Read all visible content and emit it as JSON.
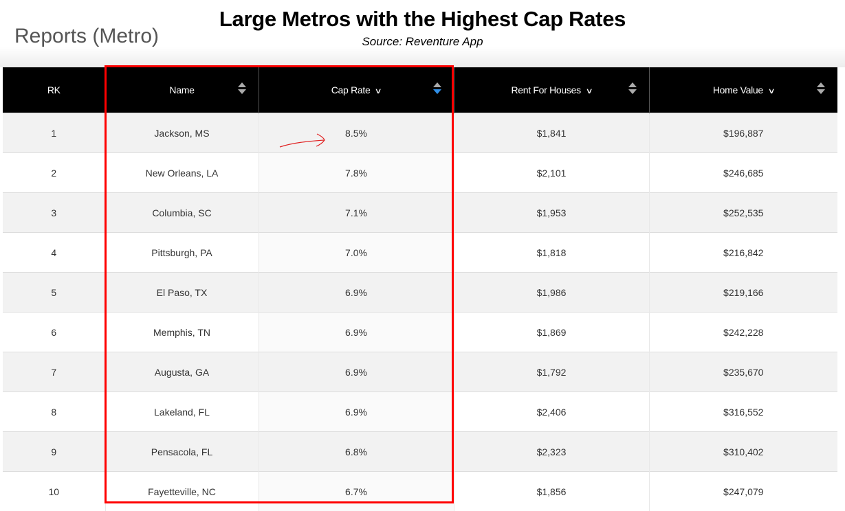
{
  "page": {
    "section_title": "Reports (Metro)",
    "headline": "Large Metros with the Highest Cap Rates",
    "source": "Source: Reventure App"
  },
  "table": {
    "columns": [
      {
        "label": "RK",
        "filter": false,
        "sortable": false
      },
      {
        "label": "Name",
        "filter": false,
        "sortable": true
      },
      {
        "label": "Cap Rate",
        "filter": true,
        "sortable": true,
        "sort": "descending"
      },
      {
        "label": "Rent For Houses",
        "filter": true,
        "sortable": true
      },
      {
        "label": "Home Value",
        "filter": true,
        "sortable": true
      }
    ],
    "rows": [
      [
        "1",
        "Jackson, MS",
        "8.5%",
        "$1,841",
        "$196,887"
      ],
      [
        "2",
        "New Orleans, LA",
        "7.8%",
        "$2,101",
        "$246,685"
      ],
      [
        "3",
        "Columbia, SC",
        "7.1%",
        "$1,953",
        "$252,535"
      ],
      [
        "4",
        "Pittsburgh, PA",
        "7.0%",
        "$1,818",
        "$216,842"
      ],
      [
        "5",
        "El Paso, TX",
        "6.9%",
        "$1,986",
        "$219,166"
      ],
      [
        "6",
        "Memphis, TN",
        "6.9%",
        "$1,869",
        "$242,228"
      ],
      [
        "7",
        "Augusta, GA",
        "6.9%",
        "$1,792",
        "$235,670"
      ],
      [
        "8",
        "Lakeland, FL",
        "6.9%",
        "$2,406",
        "$316,552"
      ],
      [
        "9",
        "Pensacola, FL",
        "6.8%",
        "$2,323",
        "$310,402"
      ],
      [
        "10",
        "Fayetteville, NC",
        "6.7%",
        "$1,856",
        "$247,079"
      ]
    ]
  },
  "colors": {
    "header_bg": "#000000",
    "sort_active": "#2f8fe8",
    "annotation": "#ff0000"
  },
  "icons": {
    "filter": "chevron-down-icon",
    "sort": "sort-arrows-icon"
  }
}
